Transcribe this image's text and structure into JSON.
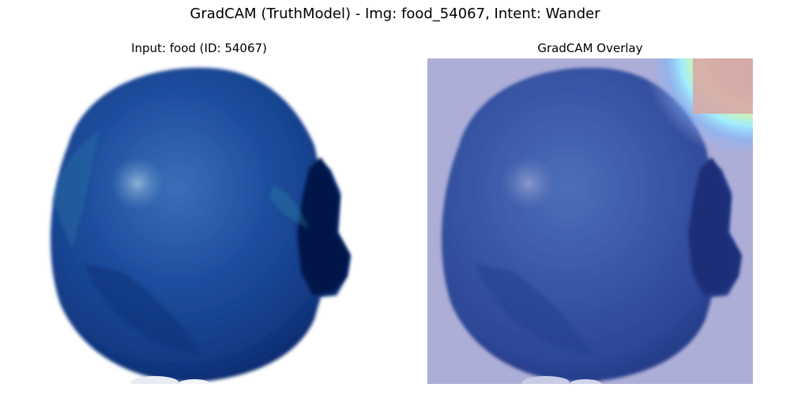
{
  "figure": {
    "title": "GradCAM (TruthModel) - Img: food_54067, Intent: Wander"
  },
  "panels": {
    "input": {
      "title": "Input: food (ID: 54067)",
      "image_description_icon": "blue-fruit-photo"
    },
    "overlay": {
      "title": "GradCAM Overlay",
      "image_description_icon": "gradcam-heatmap-overlay"
    }
  },
  "colors": {
    "fruit_dark": "#0b2a6e",
    "fruit_mid": "#1e4b9c",
    "fruit_light": "#3a6fb8",
    "highlight": "#6f9ccc",
    "overlay_bg": "#adaed8",
    "heat_red": "#d5aaa8",
    "heat_yellow": "#fff2a8",
    "heat_cyan": "#9ef0ff"
  }
}
